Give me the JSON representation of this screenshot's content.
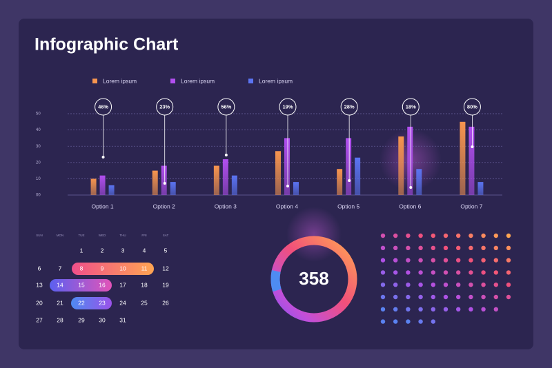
{
  "chart_data": {
    "type": "bar",
    "title": "Infographic Chart",
    "categories": [
      "Option 1",
      "Option 2",
      "Option 3",
      "Option 4",
      "Option 5",
      "Option 6",
      "Option 7"
    ],
    "series": [
      {
        "name": "Lorem ipsum",
        "color": "#f7954f",
        "values": [
          10,
          15,
          18,
          27,
          16,
          36,
          45
        ]
      },
      {
        "name": "Lorem ipsum",
        "color": "#b24ff0",
        "values": [
          12,
          18,
          22,
          35,
          35,
          42,
          42
        ]
      },
      {
        "name": "Lorem ipsum",
        "color": "#5b74f2",
        "values": [
          6,
          8,
          12,
          8,
          23,
          16,
          8
        ]
      }
    ],
    "annotations": [
      "46%",
      "23%",
      "56%",
      "19%",
      "28%",
      "18%",
      "80%"
    ],
    "ylim": [
      0,
      50
    ],
    "yticks": [
      {
        "value": 0,
        "label": "00"
      },
      10,
      20,
      30,
      40,
      50
    ],
    "grid": true
  },
  "calendar": {
    "weekdays": [
      "SUN",
      "MON",
      "TUE",
      "WED",
      "THU",
      "FRI",
      "SAT"
    ],
    "weeks": [
      [
        null,
        null,
        1,
        2,
        3,
        4,
        5
      ],
      [
        6,
        7,
        8,
        9,
        10,
        11,
        12
      ],
      [
        13,
        14,
        15,
        16,
        17,
        18,
        19
      ],
      [
        20,
        21,
        22,
        23,
        24,
        25,
        26
      ],
      [
        27,
        28,
        29,
        30,
        31,
        null,
        null
      ]
    ]
  },
  "donut": {
    "value": 358
  }
}
